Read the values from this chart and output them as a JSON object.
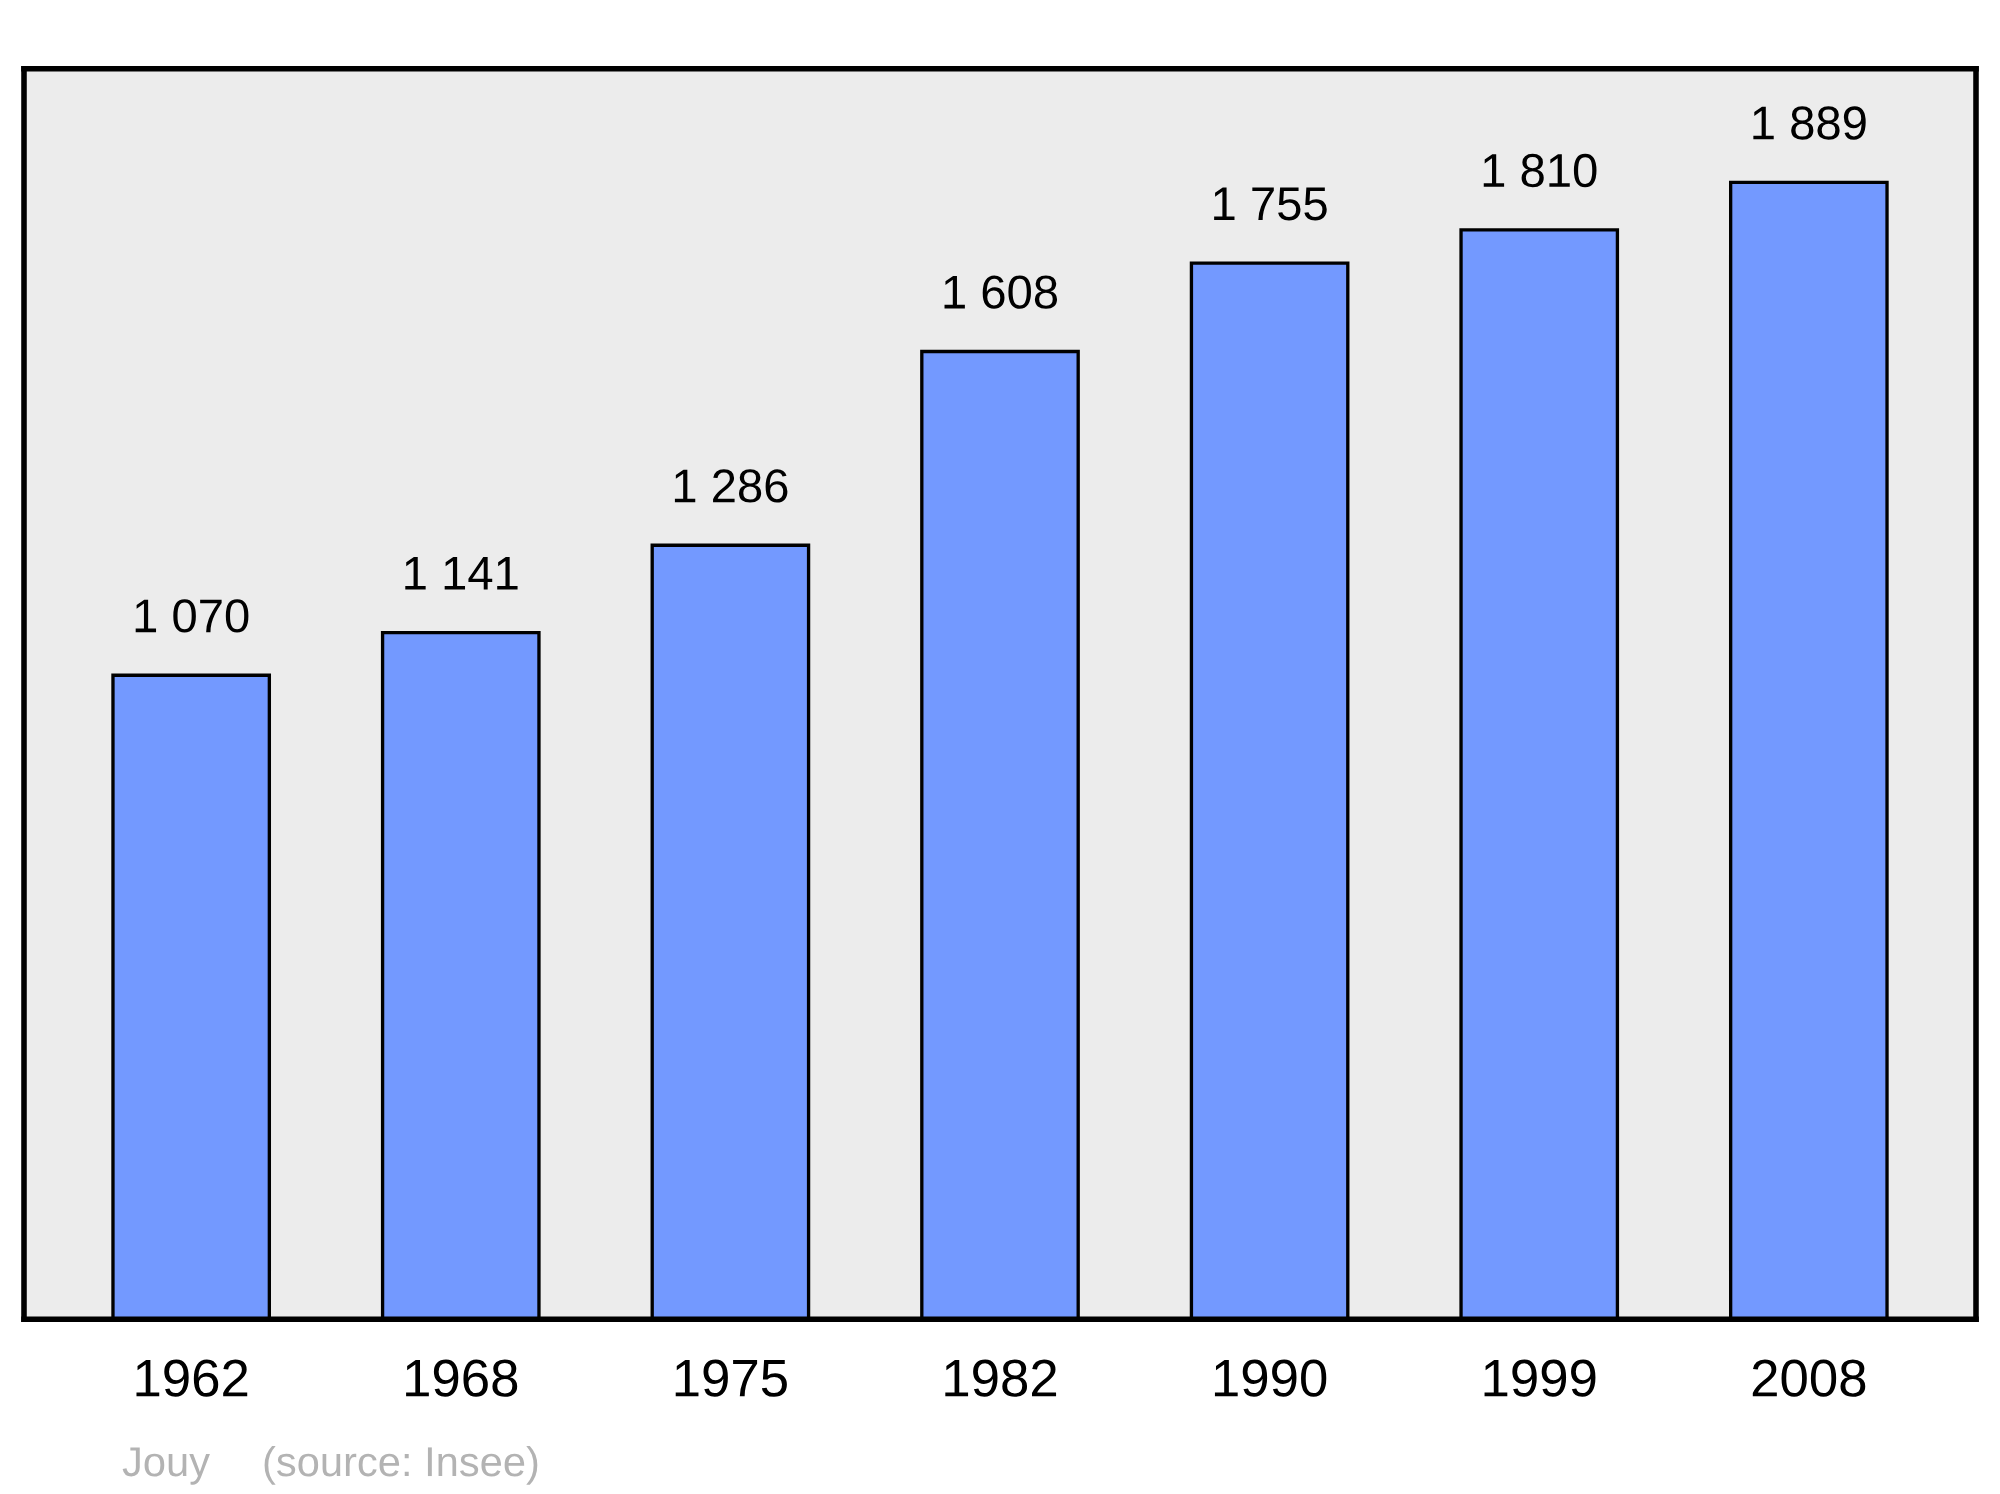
{
  "chart_data": {
    "type": "bar",
    "categories": [
      "1962",
      "1968",
      "1975",
      "1982",
      "1990",
      "1999",
      "2008"
    ],
    "values": [
      1070,
      1141,
      1286,
      1608,
      1755,
      1810,
      1889
    ],
    "value_labels": [
      "1 070",
      "1 141",
      "1 286",
      "1 608",
      "1 755",
      "1 810",
      "1 889"
    ],
    "color": "#7399ff",
    "grid": false,
    "annotations": [
      "Jouy",
      "(source: Insee)"
    ]
  }
}
